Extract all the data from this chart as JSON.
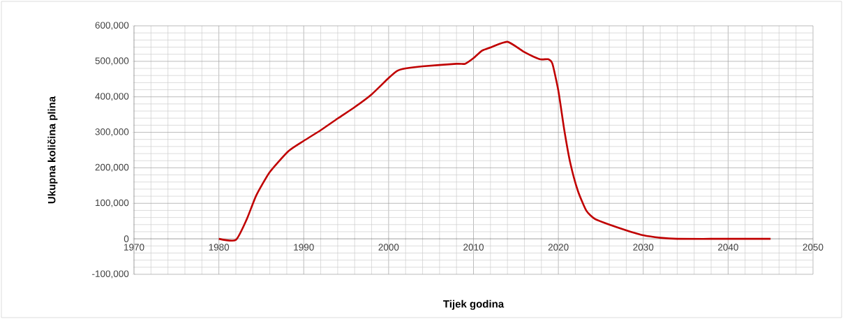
{
  "chart_data": {
    "type": "line",
    "xlabel": "Tijek godina",
    "ylabel": "Ukupna količina plina",
    "x": [
      1980,
      1982,
      1983.3,
      1984.4,
      1986,
      1988.2,
      1990,
      1992,
      1994,
      1996,
      1998,
      2000,
      2001,
      2002,
      2004,
      2008,
      2009,
      2010,
      2011,
      2012,
      2014,
      2016,
      2017.8,
      2018.8,
      2019.3,
      2020,
      2020.7,
      2021.4,
      2022.3,
      2023.3,
      2024.3,
      2026,
      2028,
      2030,
      2032,
      2034,
      2040,
      2045
    ],
    "series": [
      {
        "color": "#c00000",
        "values": [
          0,
          -3000,
          56000,
          122000,
          188000,
          247000,
          276000,
          306000,
          339000,
          371000,
          407000,
          453000,
          473000,
          480000,
          486000,
          493000,
          493000,
          509000,
          530000,
          539000,
          555000,
          526000,
          506000,
          506000,
          493000,
          417000,
          306000,
          214000,
          135000,
          79000,
          56000,
          40000,
          24000,
          10000,
          3000,
          0,
          0,
          0
        ]
      }
    ],
    "xlim": [
      1970,
      2050
    ],
    "ylim": [
      -100000,
      600000
    ],
    "xticks": [
      1970,
      1980,
      1990,
      2000,
      2010,
      2020,
      2030,
      2040,
      2050
    ],
    "yticks": [
      {
        "value": -100000,
        "label": "-100,000"
      },
      {
        "value": 0,
        "label": "0"
      },
      {
        "value": 100000,
        "label": "100,000"
      },
      {
        "value": 200000,
        "label": "200,000"
      },
      {
        "value": 300000,
        "label": "300,000"
      },
      {
        "value": 400000,
        "label": "400,000"
      },
      {
        "value": 500000,
        "label": "500,000"
      },
      {
        "value": 600000,
        "label": "600,000"
      }
    ],
    "grid": true,
    "marker": "none",
    "line_style": "solid"
  }
}
